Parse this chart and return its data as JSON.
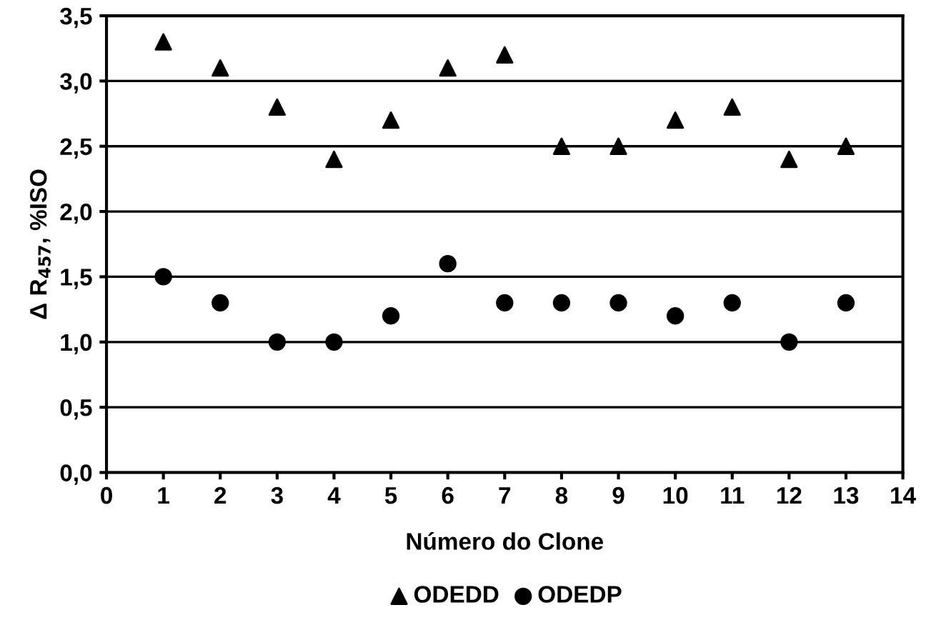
{
  "chart_data": {
    "type": "scatter",
    "xlabel": "Número do Clone",
    "ylabel": "Δ R$_{457}$, %ISO",
    "x": [
      1,
      2,
      3,
      4,
      5,
      6,
      7,
      8,
      9,
      10,
      11,
      12,
      13
    ],
    "series": [
      {
        "name": "ODEDD",
        "color": "#000000",
        "marker": "triangle",
        "values": [
          3.3,
          3.1,
          2.8,
          2.4,
          2.7,
          3.1,
          3.2,
          2.5,
          2.5,
          2.7,
          2.8,
          2.4,
          2.5
        ]
      },
      {
        "name": "ODEDP",
        "color": "#000000",
        "marker": "circle",
        "values": [
          1.5,
          1.3,
          1.0,
          1.0,
          1.2,
          1.6,
          1.3,
          1.3,
          1.3,
          1.2,
          1.3,
          1.0,
          1.3
        ]
      }
    ],
    "xlim": [
      0,
      14
    ],
    "xticks": [
      0,
      1,
      2,
      3,
      4,
      5,
      6,
      7,
      8,
      9,
      10,
      11,
      12,
      13,
      14
    ],
    "ylim": [
      0,
      3.5
    ],
    "yticks": [
      {
        "value": 0,
        "label": "0,0"
      },
      {
        "value": 0.5,
        "label": "0,5"
      },
      {
        "value": 1,
        "label": "1,0"
      },
      {
        "value": 1.5,
        "label": "1,5"
      },
      {
        "value": 2,
        "label": "2,0"
      },
      {
        "value": 2.5,
        "label": "2,5"
      },
      {
        "value": 3,
        "label": "3,0"
      },
      {
        "value": 3.5,
        "label": "3,5"
      }
    ],
    "grid": "y",
    "legend": "bottom"
  }
}
